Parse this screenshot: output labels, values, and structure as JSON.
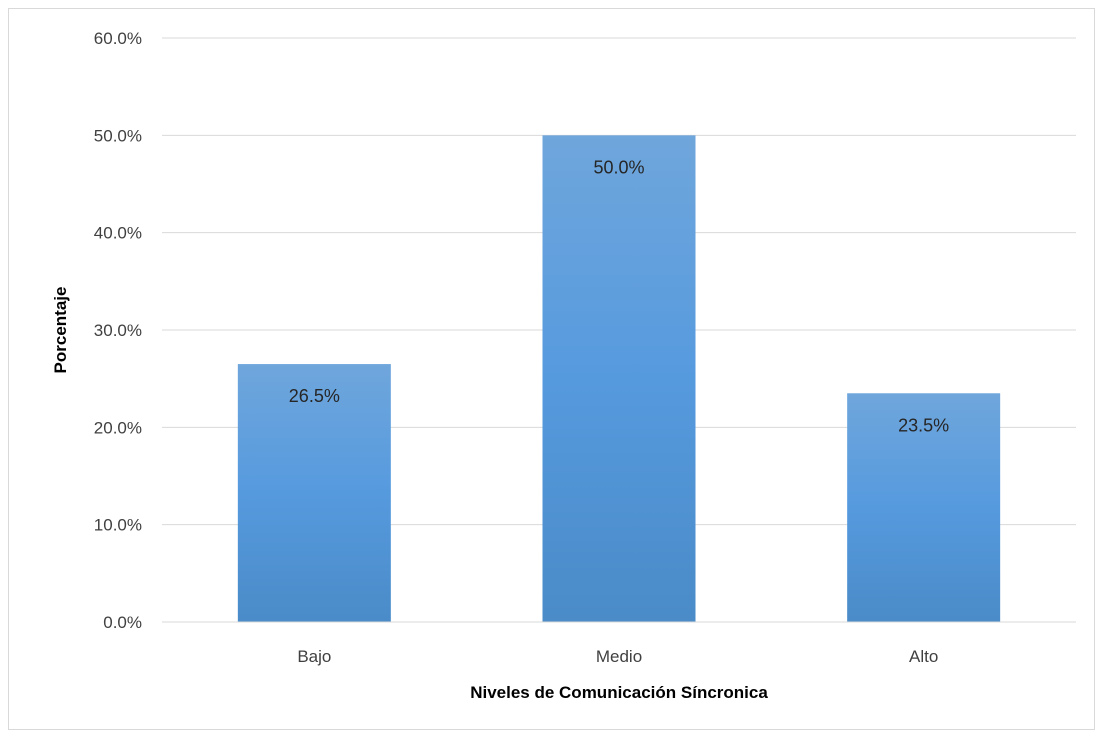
{
  "chart_data": {
    "type": "bar",
    "categories": [
      "Bajo",
      "Medio",
      "Alto"
    ],
    "values": [
      26.5,
      50.0,
      23.5
    ],
    "data_labels": [
      "26.5%",
      "50.0%",
      "23.5%"
    ],
    "xlabel": "Niveles de Comunicación Síncronica",
    "ylabel": "Porcentaje",
    "ylim": [
      0,
      60
    ],
    "yticks": [
      0,
      10,
      20,
      30,
      40,
      50,
      60
    ],
    "ytick_labels": [
      "0.0%",
      "10.0%",
      "20.0%",
      "30.0%",
      "40.0%",
      "50.0%",
      "60.0%"
    ],
    "grid": true,
    "legend": "none",
    "colors": {
      "bar_top": "#6fa6dc",
      "bar_bottom": "#4a8bc8",
      "grid": "#d9d9d9"
    }
  }
}
